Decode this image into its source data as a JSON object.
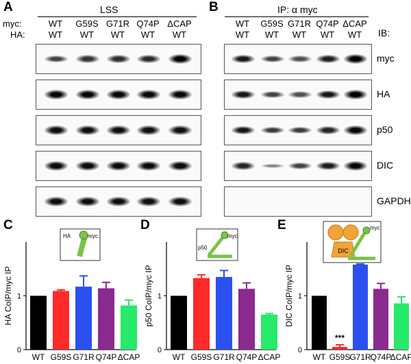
{
  "panelA": {
    "letter": "A",
    "title": "LSS",
    "row_labels": [
      "myc:",
      "HA:"
    ],
    "lanes": [
      {
        "myc": "WT",
        "ha": "WT"
      },
      {
        "myc": "G59S",
        "ha": "WT"
      },
      {
        "myc": "G71R",
        "ha": "WT"
      },
      {
        "myc": "Q74P",
        "ha": "WT"
      },
      {
        "myc": "ΔCAP",
        "ha": "WT"
      }
    ],
    "blots": [
      {
        "name": "myc",
        "intensity": [
          0.55,
          0.65,
          0.7,
          0.72,
          1.0
        ]
      },
      {
        "name": "HA",
        "intensity": [
          0.95,
          0.95,
          0.95,
          0.95,
          0.95
        ]
      },
      {
        "name": "p50",
        "intensity": [
          0.9,
          0.9,
          0.9,
          0.9,
          0.9
        ]
      },
      {
        "name": "DIC",
        "intensity": [
          0.92,
          0.92,
          0.92,
          0.92,
          0.92
        ]
      },
      {
        "name": "GAPDH",
        "intensity": [
          0.9,
          0.9,
          0.9,
          0.9,
          0.9
        ]
      }
    ]
  },
  "panelB": {
    "letter": "B",
    "title": "IP: α myc",
    "ib_header": "IB:",
    "lanes": [
      {
        "myc": "WT",
        "ha": "WT"
      },
      {
        "myc": "G59S",
        "ha": "WT"
      },
      {
        "myc": "G71R",
        "ha": "WT"
      },
      {
        "myc": "Q74P",
        "ha": "WT"
      },
      {
        "myc": "ΔCAP",
        "ha": "WT"
      }
    ],
    "blots": [
      {
        "name": "myc",
        "intensity": [
          0.85,
          0.55,
          0.45,
          0.8,
          1.0
        ]
      },
      {
        "name": "HA",
        "intensity": [
          0.85,
          0.55,
          0.45,
          0.85,
          1.0
        ]
      },
      {
        "name": "p50",
        "intensity": [
          0.85,
          0.6,
          0.6,
          0.75,
          0.95
        ]
      },
      {
        "name": "DIC",
        "intensity": [
          0.75,
          0.1,
          0.55,
          0.8,
          0.95
        ]
      },
      {
        "name": "GAPDH",
        "intensity": [
          0,
          0,
          0,
          0,
          0
        ]
      }
    ]
  },
  "chart_data": [
    {
      "letter": "C",
      "type": "bar",
      "categories": [
        "WT",
        "G59S",
        "G71R",
        "Q74P",
        "ΔCAP"
      ],
      "values": [
        1.0,
        1.09,
        1.17,
        1.14,
        0.82
      ],
      "errors": [
        0,
        0.02,
        0.2,
        0.11,
        0.1
      ],
      "colors": [
        "#000000",
        "#ff2a2a",
        "#2b50f0",
        "#8b2a8f",
        "#27e96a"
      ],
      "ylabel": "HA CoIP/myc IP",
      "ylim": [
        0,
        2
      ],
      "yticks": [
        0,
        1
      ],
      "inset_labels": [
        "HA",
        "myc"
      ],
      "annotation": ""
    },
    {
      "letter": "D",
      "type": "bar",
      "categories": [
        "WT",
        "G59S",
        "G71R",
        "Q74P",
        "ΔCAP"
      ],
      "values": [
        1.0,
        1.33,
        1.35,
        1.13,
        0.65
      ],
      "errors": [
        0,
        0.06,
        0.12,
        0.11,
        0.02
      ],
      "colors": [
        "#000000",
        "#ff2a2a",
        "#2b50f0",
        "#8b2a8f",
        "#27e96a"
      ],
      "ylabel": "p50 CoIP/myc IP",
      "ylim": [
        0,
        2
      ],
      "yticks": [
        0,
        1
      ],
      "inset_labels": [
        "p50",
        "myc"
      ],
      "annotation": ""
    },
    {
      "letter": "E",
      "type": "bar",
      "categories": [
        "WT",
        "G59S",
        "G71R",
        "Q74P",
        "ΔCAP"
      ],
      "values": [
        1.0,
        0.05,
        1.58,
        1.13,
        0.86
      ],
      "errors": [
        0,
        0.04,
        0.01,
        0.1,
        0.12
      ],
      "colors": [
        "#000000",
        "#ff2a2a",
        "#2b50f0",
        "#8b2a8f",
        "#27e96a"
      ],
      "ylabel": "DIC CoIP/myc IP",
      "ylim": [
        0,
        2
      ],
      "yticks": [
        0,
        1
      ],
      "inset_labels": [
        "DIC",
        "myc"
      ],
      "annotation": "***"
    }
  ]
}
